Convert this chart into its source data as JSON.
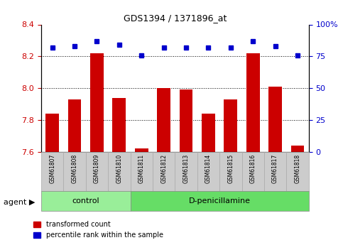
{
  "title": "GDS1394 / 1371896_at",
  "samples": [
    "GSM61807",
    "GSM61808",
    "GSM61809",
    "GSM61810",
    "GSM61811",
    "GSM61812",
    "GSM61813",
    "GSM61814",
    "GSM61815",
    "GSM61816",
    "GSM61817",
    "GSM61818"
  ],
  "red_values": [
    7.84,
    7.93,
    8.22,
    7.94,
    7.62,
    8.0,
    7.99,
    7.84,
    7.93,
    8.22,
    8.01,
    7.64
  ],
  "blue_values": [
    82,
    83,
    87,
    84,
    76,
    82,
    82,
    82,
    82,
    87,
    83,
    76
  ],
  "ylim_left": [
    7.6,
    8.4
  ],
  "ylim_right": [
    0,
    100
  ],
  "yticks_left": [
    7.6,
    7.8,
    8.0,
    8.2,
    8.4
  ],
  "yticks_right": [
    0,
    25,
    50,
    75,
    100
  ],
  "grid_lines": [
    7.8,
    8.0,
    8.2
  ],
  "bar_color": "#cc0000",
  "dot_color": "#0000cc",
  "control_samples": 4,
  "control_label": "control",
  "treatment_label": "D-penicillamine",
  "agent_label": "agent",
  "legend_red": "transformed count",
  "legend_blue": "percentile rank within the sample",
  "bar_width": 0.6,
  "bg_plot": "#ffffff",
  "tick_label_color_left": "#cc0000",
  "tick_label_color_right": "#0000cc",
  "control_bg": "#99ee99",
  "treatment_bg": "#66dd66",
  "xticklabels_bg": "#cccccc"
}
